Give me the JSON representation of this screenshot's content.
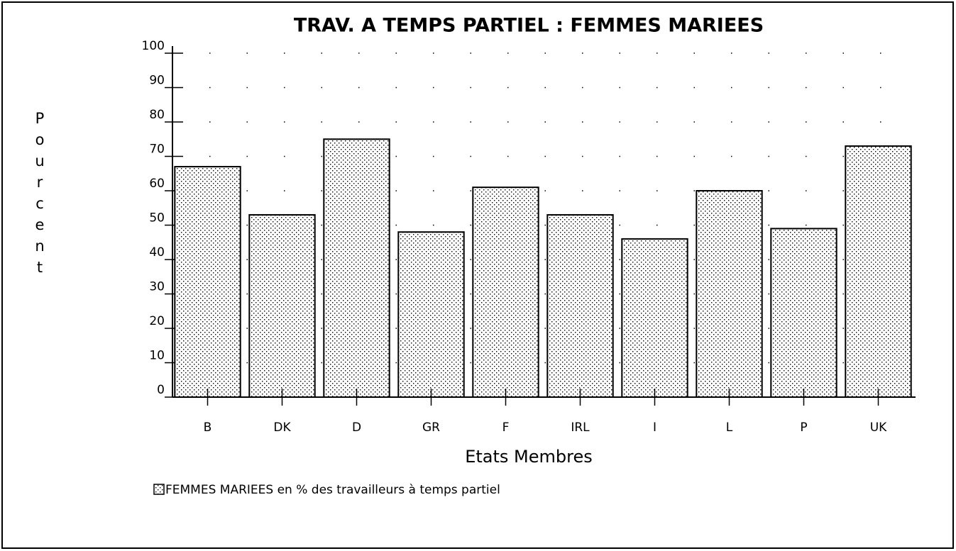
{
  "chart_data": {
    "type": "bar",
    "title": "TRAV. A TEMPS PARTIEL : FEMMES MARIEES",
    "x_label": "Etats Membres",
    "y_label": "Pourcent",
    "categories": [
      "B",
      "DK",
      "D",
      "GR",
      "F",
      "IRL",
      "I",
      "L",
      "P",
      "UK"
    ],
    "series": [
      {
        "name": "FEMMES MARIEES en % des travailleurs à temps partiel",
        "values": [
          67,
          53,
          75,
          48,
          61,
          53,
          46,
          60,
          49,
          73
        ]
      }
    ],
    "ylim": [
      0,
      100
    ],
    "yticks": [
      0,
      10,
      20,
      30,
      40,
      50,
      60,
      70,
      80,
      90,
      100
    ],
    "grid": true
  }
}
